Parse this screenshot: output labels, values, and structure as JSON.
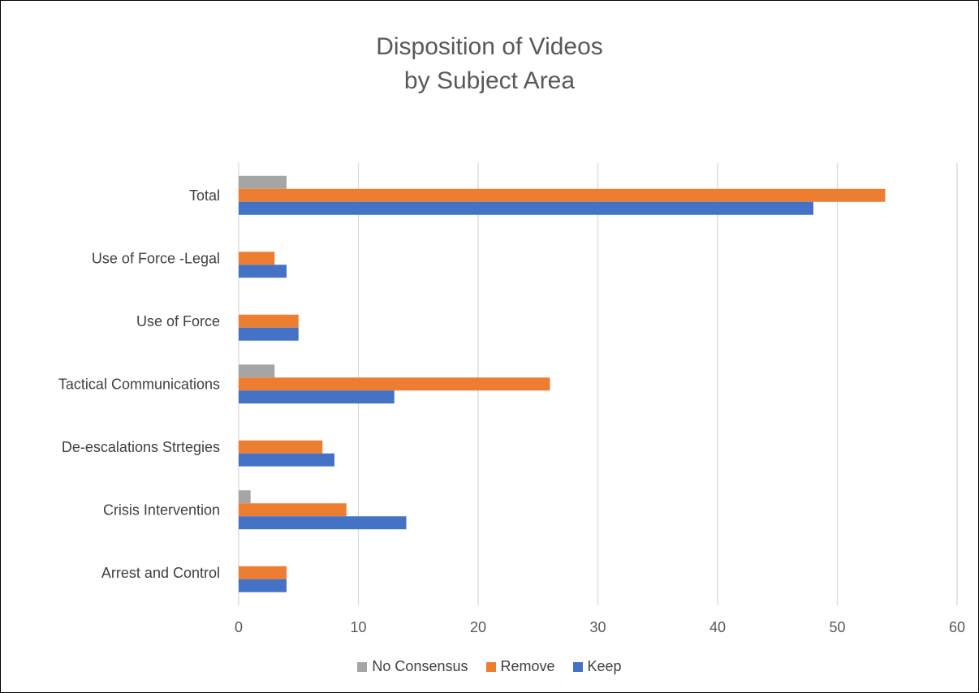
{
  "chart_data": {
    "type": "bar",
    "orientation": "horizontal",
    "title": [
      "Disposition of Videos",
      "by Subject Area"
    ],
    "categories": [
      "Arrest  and Control",
      "Crisis Intervention",
      "De-escalations Strtegies",
      "Tactical Communications",
      "Use of Force",
      "Use of Force -Legal",
      "Total"
    ],
    "series": [
      {
        "name": "Keep",
        "color": "#4472C4",
        "values": [
          4,
          14,
          8,
          13,
          5,
          4,
          48
        ]
      },
      {
        "name": "Remove",
        "color": "#ED7D31",
        "values": [
          4,
          9,
          7,
          26,
          5,
          3,
          54
        ]
      },
      {
        "name": "No Consensus",
        "color": "#A5A5A5",
        "values": [
          0,
          1,
          0,
          3,
          0,
          0,
          4
        ]
      }
    ],
    "xlim": [
      0,
      60
    ],
    "xticks": [
      "0",
      "10",
      "20",
      "30",
      "40",
      "50",
      "60"
    ],
    "grid": true,
    "legend_position": "bottom",
    "legend_order": [
      "No Consensus",
      "Remove",
      "Keep"
    ]
  }
}
